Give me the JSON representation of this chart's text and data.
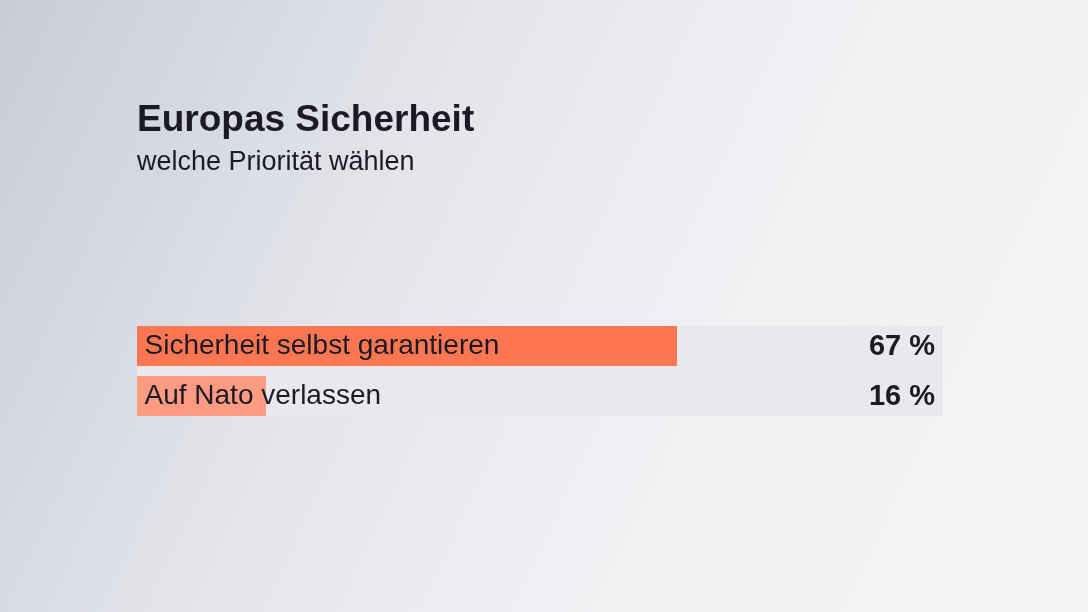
{
  "chart_data": {
    "type": "bar",
    "orientation": "horizontal",
    "title": "Europas Sicherheit",
    "subtitle": "welche Priorität wählen",
    "categories": [
      "Sicherheit selbst garantieren",
      "Auf Nato verlassen"
    ],
    "values": [
      67,
      16
    ],
    "colors": [
      "#ff7652",
      "#ff9b80"
    ],
    "value_labels": [
      "67 %",
      "16 %"
    ],
    "xlim": [
      0,
      100
    ],
    "tick_labels": "y"
  }
}
